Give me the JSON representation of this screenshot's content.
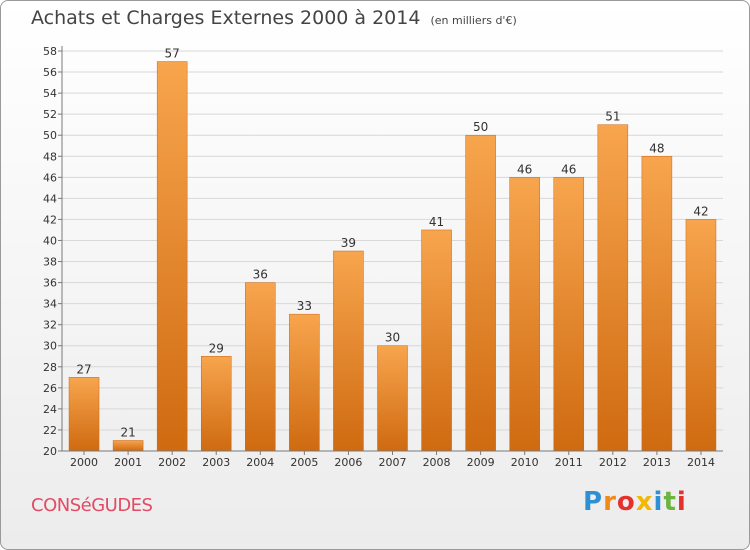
{
  "title": "Achats et Charges Externes 2000 à 2014",
  "subtitle": "(en milliers d'€)",
  "commune": "CONSéGUDES",
  "logo": {
    "text": "Proxiti",
    "colors": [
      "#2e8fd3",
      "#f08a1c",
      "#e4312b",
      "#f5b800",
      "#2e8fd3",
      "#6db33f",
      "#e4312b"
    ]
  },
  "colors": {
    "bar_top": "#f7a54e",
    "bar_bottom": "#cf6a10",
    "grid": "#d8d8d8",
    "axis": "#7a7a7a",
    "text": "#333333"
  },
  "chart_data": {
    "type": "bar",
    "title": "Achats et Charges Externes 2000 à 2014",
    "subtitle": "(en milliers d'€)",
    "categories": [
      "2000",
      "2001",
      "2002",
      "2003",
      "2004",
      "2005",
      "2006",
      "2007",
      "2008",
      "2009",
      "2010",
      "2011",
      "2012",
      "2013",
      "2014"
    ],
    "values": [
      27,
      21,
      57,
      29,
      36,
      33,
      39,
      30,
      41,
      50,
      46,
      46,
      51,
      48,
      42
    ],
    "ylim": [
      20,
      58
    ],
    "yticks": [
      20,
      22,
      24,
      26,
      28,
      30,
      32,
      34,
      36,
      38,
      40,
      42,
      44,
      46,
      48,
      50,
      52,
      54,
      56,
      58
    ],
    "grid": true,
    "data_labels": true
  }
}
